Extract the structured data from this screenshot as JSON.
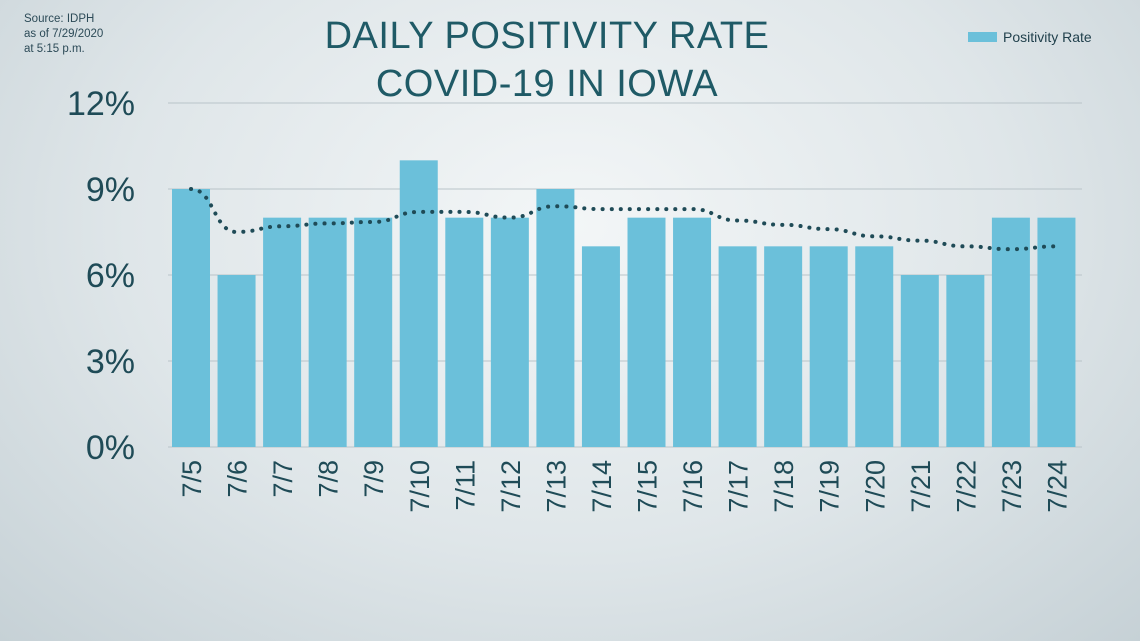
{
  "source": {
    "lines": [
      "Source: IDPH",
      "as of 7/29/2020",
      "at 5:15 p.m."
    ]
  },
  "title": {
    "line1": "DAILY POSITIVITY RATE",
    "line2": "COVID-19 IN IOWA"
  },
  "legend": {
    "label": "Positivity Rate"
  },
  "colors": {
    "bar": "#6bc0da",
    "trend": "#1f4b57",
    "grid": "#b9c4c9",
    "axis_text": "#1f4b57"
  },
  "chart_data": {
    "type": "bar",
    "title": "DAILY POSITIVITY RATE COVID-19 IN IOWA",
    "categories": [
      "7/5",
      "7/6",
      "7/7",
      "7/8",
      "7/9",
      "7/10",
      "7/11",
      "7/12",
      "7/13",
      "7/14",
      "7/15",
      "7/16",
      "7/17",
      "7/18",
      "7/19",
      "7/20",
      "7/21",
      "7/22",
      "7/23",
      "7/24"
    ],
    "series": [
      {
        "name": "Positivity Rate",
        "values": [
          9,
          6,
          8,
          8,
          8,
          10,
          8,
          8,
          9,
          7,
          8,
          8,
          7,
          7,
          7,
          7,
          6,
          6,
          8,
          8
        ]
      }
    ],
    "trendline": {
      "style": "dotted",
      "values": [
        9.0,
        7.5,
        7.7,
        7.8,
        7.85,
        8.2,
        8.2,
        8.0,
        8.4,
        8.3,
        8.3,
        8.3,
        7.9,
        7.75,
        7.6,
        7.35,
        7.2,
        7.0,
        6.9,
        7.0
      ]
    },
    "yticks": [
      "0%",
      "3%",
      "6%",
      "9%",
      "12%"
    ],
    "ytick_values": [
      0,
      3,
      6,
      9,
      12
    ],
    "ylim": [
      0,
      12
    ],
    "xlabel": "",
    "ylabel": "",
    "grid": true,
    "legend_position": "top-right"
  }
}
